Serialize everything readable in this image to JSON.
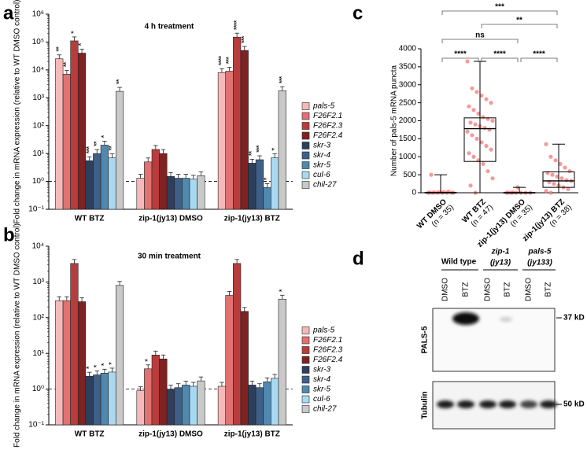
{
  "chart_data": [
    {
      "panel": "a",
      "type": "bar",
      "title": "4 h treatment",
      "ylabel": "Fold change in mRNA expression (relative to WT DMSO control)",
      "log_scale": true,
      "ylim": [
        0.1,
        1000000
      ],
      "yticks": [
        {
          "value": 0.1,
          "label": "10⁻¹"
        },
        {
          "value": 1,
          "label": "10⁰"
        },
        {
          "value": 10,
          "label": "10¹"
        },
        {
          "value": 100,
          "label": "10²"
        },
        {
          "value": 1000,
          "label": "10³"
        },
        {
          "value": 10000,
          "label": "10⁴"
        },
        {
          "value": 100000,
          "label": "10⁵"
        },
        {
          "value": 1000000,
          "label": "10⁶"
        }
      ],
      "reference_line": 1,
      "categories": [
        "WT BTZ",
        "zip-1(jy13) DMSO",
        "zip-1(jy13) BTZ"
      ],
      "series": [
        {
          "name": "pals-5",
          "color": "#f5b9b9",
          "values": [
            25000,
            1.3,
            8000
          ],
          "significance": [
            "**",
            null,
            "****"
          ]
        },
        {
          "name": "F26F2.1",
          "color": "#e07272",
          "values": [
            7000,
            5,
            9000
          ],
          "significance": [
            "**",
            null,
            "***"
          ]
        },
        {
          "name": "F26F2.3",
          "color": "#b83c3c",
          "values": [
            110000,
            14,
            150000
          ],
          "significance": [
            "*",
            null,
            "****"
          ]
        },
        {
          "name": "F26F2.4",
          "color": "#7e2222",
          "values": [
            40000,
            10,
            50000
          ],
          "significance": [
            "*",
            null,
            "***"
          ]
        },
        {
          "name": "skr-3",
          "color": "#2d3f5d",
          "values": [
            5.5,
            1.5,
            4.5
          ],
          "significance": [
            "***",
            null,
            "**"
          ]
        },
        {
          "name": "skr-4",
          "color": "#3e6088",
          "values": [
            10,
            1.3,
            6
          ],
          "significance": [
            "**",
            null,
            "***"
          ]
        },
        {
          "name": "skr-5",
          "color": "#5088af",
          "values": [
            20,
            1.3,
            0.6
          ],
          "significance": [
            "*",
            null,
            "*"
          ]
        },
        {
          "name": "cul-6",
          "color": "#a9d9f0",
          "values": [
            7,
            1.2,
            7
          ],
          "significance": [
            "**",
            null,
            "*"
          ]
        },
        {
          "name": "chil-27",
          "color": "#c9c9c9",
          "values": [
            1700,
            1.6,
            1800
          ],
          "significance": [
            "**",
            null,
            "***"
          ]
        }
      ]
    },
    {
      "panel": "b",
      "type": "bar",
      "title": "30 min treatment",
      "ylabel": "Fold change in mRNA expression (relative to WT DMSO control)",
      "log_scale": true,
      "ylim": [
        0.1,
        10000
      ],
      "yticks": [
        {
          "value": 0.1,
          "label": "10⁻¹"
        },
        {
          "value": 1,
          "label": "10⁰"
        },
        {
          "value": 10,
          "label": "10¹"
        },
        {
          "value": 100,
          "label": "10²"
        },
        {
          "value": 1000,
          "label": "10³"
        },
        {
          "value": 10000,
          "label": "10⁴"
        }
      ],
      "reference_line": 1,
      "categories": [
        "WT BTZ",
        "zip-1(jy13) DMSO",
        "zip-1(jy13) BTZ"
      ],
      "series": [
        {
          "name": "pals-5",
          "color": "#f5b9b9",
          "values": [
            300,
            0.9,
            1.2
          ],
          "significance": [
            null,
            null,
            null
          ]
        },
        {
          "name": "F26F2.1",
          "color": "#e07272",
          "values": [
            300,
            3.7,
            420
          ],
          "significance": [
            null,
            "*",
            null
          ]
        },
        {
          "name": "F26F2.3",
          "color": "#b83c3c",
          "values": [
            3300,
            9,
            3300
          ],
          "significance": [
            null,
            null,
            null
          ]
        },
        {
          "name": "F26F2.4",
          "color": "#7e2222",
          "values": [
            280,
            7,
            150
          ],
          "significance": [
            null,
            null,
            null
          ]
        },
        {
          "name": "skr-3",
          "color": "#2d3f5d",
          "values": [
            2.3,
            1.0,
            1.3
          ],
          "significance": [
            "*",
            null,
            null
          ]
        },
        {
          "name": "skr-4",
          "color": "#3e6088",
          "values": [
            2.5,
            1.1,
            1.1
          ],
          "significance": [
            "*",
            null,
            null
          ]
        },
        {
          "name": "skr-5",
          "color": "#5088af",
          "values": [
            2.8,
            1.3,
            1.6
          ],
          "significance": [
            "*",
            null,
            null
          ]
        },
        {
          "name": "cul-6",
          "color": "#a9d9f0",
          "values": [
            3,
            1.2,
            2
          ],
          "significance": [
            "*",
            null,
            null
          ]
        },
        {
          "name": "chil-27",
          "color": "#c9c9c9",
          "values": [
            800,
            1.7,
            330
          ],
          "significance": [
            null,
            null,
            "*"
          ]
        }
      ]
    },
    {
      "panel": "c",
      "type": "box",
      "ylabel": "Number of pals-5 mRNA puncta",
      "ylim": [
        0,
        4000
      ],
      "yticks": [
        0,
        500,
        1000,
        1500,
        2000,
        2500,
        3000,
        3500,
        4000
      ],
      "reference_line": 0,
      "color": "#f07a7a",
      "categories": [
        "WT DMSO",
        "WT BTZ",
        "zip-1(jy13) DMSO",
        "zip-1(jy13) BTZ"
      ],
      "n_labels": [
        "(n = 35)",
        "(n = 47)",
        "(n = 35)",
        "(n = 38)"
      ],
      "boxes": [
        {
          "min": 0,
          "q1": 0,
          "median": 0,
          "q3": 10,
          "max": 500,
          "points": [
            0,
            0,
            0,
            0,
            0,
            0,
            5,
            10,
            15,
            20,
            30,
            0,
            500
          ]
        },
        {
          "min": 0,
          "q1": 870,
          "median": 1780,
          "q3": 2080,
          "max": 3650,
          "points": [
            3650,
            2900,
            2800,
            2700,
            2600,
            2500,
            2400,
            2300,
            2200,
            2100,
            2050,
            2000,
            1950,
            1900,
            1850,
            1800,
            1750,
            1700,
            1600,
            1500,
            1400,
            1300,
            1200,
            1100,
            1000,
            900,
            800,
            600,
            400,
            200,
            0
          ]
        },
        {
          "min": 0,
          "q1": 0,
          "median": 0,
          "q3": 5,
          "max": 150,
          "points": [
            0,
            0,
            0,
            0,
            0,
            0,
            5,
            10,
            150
          ]
        },
        {
          "min": 0,
          "q1": 150,
          "median": 330,
          "q3": 580,
          "max": 1350,
          "points": [
            1350,
            1000,
            900,
            800,
            700,
            600,
            550,
            500,
            450,
            400,
            350,
            330,
            300,
            250,
            200,
            150,
            100,
            50,
            0
          ]
        }
      ],
      "comparisons": [
        {
          "groups": [
            "WT DMSO",
            "WT BTZ"
          ],
          "label": "****"
        },
        {
          "groups": [
            "WT BTZ",
            "zip-1(jy13) DMSO"
          ],
          "label": "****"
        },
        {
          "groups": [
            "zip-1(jy13) DMSO",
            "zip-1(jy13) BTZ"
          ],
          "label": "****"
        },
        {
          "groups": [
            "WT DMSO",
            "zip-1(jy13) DMSO"
          ],
          "label": "ns"
        },
        {
          "groups": [
            "WT BTZ",
            "zip-1(jy13) BTZ"
          ],
          "label": "**"
        },
        {
          "groups": [
            "WT DMSO",
            "zip-1(jy13) BTZ"
          ],
          "label": "***"
        }
      ]
    }
  ],
  "panel_d": {
    "panel": "d",
    "headers": [
      {
        "lines": [
          "Wild type"
        ]
      },
      {
        "lines": [
          "zip-1",
          "(jy13)"
        ]
      },
      {
        "lines": [
          "pals-5",
          "(jy133)"
        ]
      }
    ],
    "lanes": [
      "DMSO",
      "BTZ",
      "DMSO",
      "BTZ",
      "DMSO",
      "BTZ"
    ],
    "rows": [
      {
        "label": "PALS-5",
        "marker": "37 kD"
      },
      {
        "label": "Tubulin",
        "marker": "50 kD"
      }
    ]
  }
}
